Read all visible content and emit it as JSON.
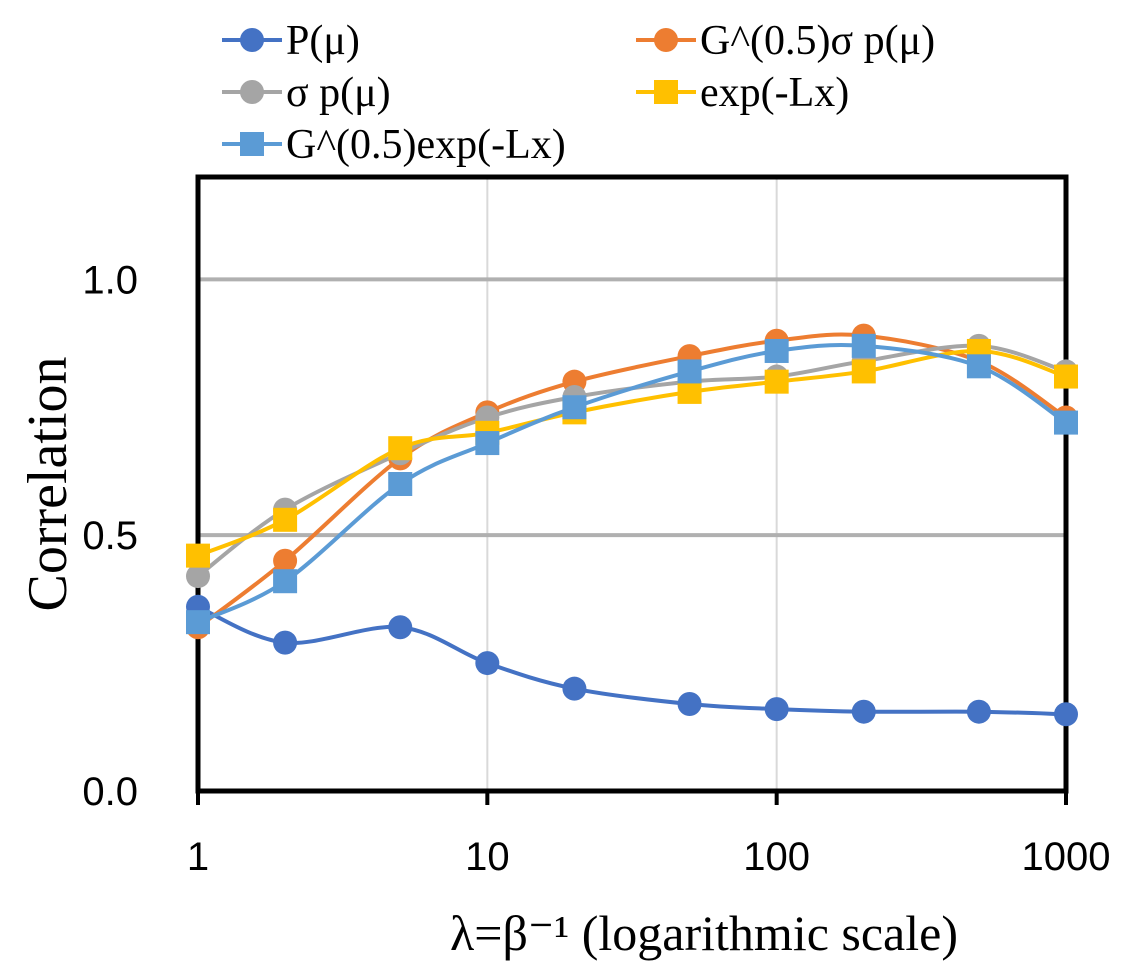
{
  "chart_data": {
    "type": "line",
    "title": "",
    "xlabel": "λ=β⁻¹ (logarithmic scale)",
    "ylabel": "Correlation",
    "xscale": "log",
    "xlim": [
      1,
      1000
    ],
    "ylim": [
      0,
      1.2
    ],
    "x_ticks": [
      1,
      10,
      100,
      1000
    ],
    "x_tick_labels": [
      "1",
      "10",
      "100",
      "1000"
    ],
    "y_ticks": [
      0.0,
      0.5,
      1.0
    ],
    "y_tick_labels": [
      "0.0",
      "0.5",
      "1.0"
    ],
    "grid": true,
    "legend_position": "top",
    "x": [
      1,
      2,
      5,
      10,
      20,
      50,
      100,
      200,
      500,
      1000
    ],
    "series": [
      {
        "name": "P(μ)",
        "color": "#4472C4",
        "marker": "circle",
        "values": [
          0.36,
          0.29,
          0.32,
          0.25,
          0.2,
          0.17,
          0.16,
          0.155,
          0.155,
          0.15
        ]
      },
      {
        "name": "G^(0.5)σ p(μ)",
        "color": "#ED7D31",
        "marker": "circle",
        "values": [
          0.32,
          0.45,
          0.65,
          0.74,
          0.8,
          0.85,
          0.88,
          0.89,
          0.84,
          0.73
        ]
      },
      {
        "name": "σ p(μ)",
        "color": "#A5A5A5",
        "marker": "circle",
        "values": [
          0.42,
          0.55,
          0.66,
          0.73,
          0.77,
          0.8,
          0.81,
          0.84,
          0.87,
          0.82
        ]
      },
      {
        "name": "exp(-Lx)",
        "color": "#FFC000",
        "marker": "square",
        "values": [
          0.46,
          0.53,
          0.67,
          0.7,
          0.74,
          0.78,
          0.8,
          0.82,
          0.86,
          0.81
        ]
      },
      {
        "name": "G^(0.5)exp(-Lx)",
        "color": "#5B9BD5",
        "marker": "square",
        "values": [
          0.33,
          0.41,
          0.6,
          0.68,
          0.75,
          0.82,
          0.86,
          0.87,
          0.83,
          0.72
        ]
      }
    ]
  }
}
